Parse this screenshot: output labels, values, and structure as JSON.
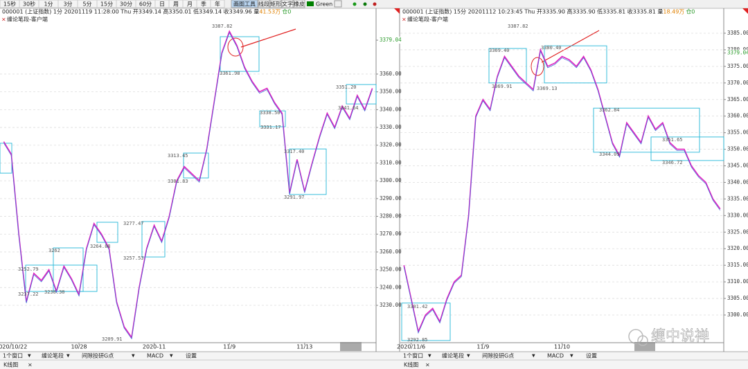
{
  "toolbar": {
    "periods": [
      "15秒",
      "30秒",
      "1分",
      "3分",
      "5分",
      "15分",
      "30分",
      "60分",
      "日",
      "周",
      "月",
      "季",
      "年"
    ],
    "tools": [
      "画图工具",
      "线段",
      "矩形",
      "文字",
      "橡皮"
    ],
    "color_name": "Green"
  },
  "watermark": "缠中说禅",
  "tab": "K线图",
  "panels": [
    {
      "header": "000001 (上证指数) 1分 20201119 11:28:00 Thu  开3349.14 高3350.01 低3349.14 收3349.96 量",
      "volume": "41.53万",
      "tail": "仓0",
      "indicator": "缠论笔段-客户端",
      "chart_data": {
        "type": "line",
        "color": "#e020c0",
        "ylim": [
          3209,
          3388
        ],
        "yticks": [
          {
            "value": 3230,
            "label": "3230.00"
          },
          {
            "value": 3240,
            "label": "3240.00"
          },
          {
            "value": 3250,
            "label": "3250.00"
          },
          {
            "value": 3260,
            "label": "3260.00"
          },
          {
            "value": 3270,
            "label": "3270.00"
          },
          {
            "value": 3280,
            "label": "3280.00"
          },
          {
            "value": 3290,
            "label": "3290.00"
          },
          {
            "value": 3300,
            "label": "3300.00"
          },
          {
            "value": 3310,
            "label": "3310.00"
          },
          {
            "value": 3320,
            "label": "3320.00"
          },
          {
            "value": 3330,
            "label": "3330.00"
          },
          {
            "value": 3340,
            "label": "3340.00"
          },
          {
            "value": 3350,
            "label": "3350.00"
          },
          {
            "value": 3360,
            "label": "3360.00"
          },
          3379.04
        ],
        "categories": [
          null,
          "2020/10/22",
          null,
          null,
          null,
          null,
          null,
          null,
          null,
          null,
          "10/28",
          null,
          null,
          null,
          null,
          null,
          null,
          null,
          null,
          null,
          "2020-11",
          null,
          null,
          null,
          null,
          null,
          null,
          null,
          null,
          null,
          "11/9",
          null,
          null,
          null,
          null,
          null,
          null,
          null,
          null,
          null,
          "11/13",
          null,
          null,
          null,
          null,
          null,
          null,
          null,
          null,
          null
        ],
        "values": [
          3322,
          3315,
          3270,
          3232,
          3248,
          3244,
          3250,
          3238,
          3252,
          3245,
          3236,
          3262,
          3276,
          3270,
          3262,
          3232,
          3218,
          3212,
          3240,
          3262,
          3275,
          3266,
          3280,
          3300,
          3308,
          3304,
          3300,
          3318,
          3345,
          3372,
          3384,
          3376,
          3364,
          3356,
          3350,
          3352,
          3344,
          3338,
          3293,
          3312,
          3294,
          3310,
          3325,
          3338,
          3330,
          3342,
          3335,
          3348,
          3340,
          3352
        ],
        "zones": [
          {
            "high": 3321.1,
            "low": 3304.3
          },
          {
            "high": 3252.6,
            "low": 3237.8
          },
          {
            "high": 3262.3,
            "low": 3237.8
          },
          {
            "high": 3276.7,
            "low": 3265.4
          },
          {
            "high": 3277.1,
            "low": 3257.2
          },
          {
            "high": 3315.6,
            "low": 3301.6
          },
          {
            "high": 3381,
            "low": 3361.5
          },
          {
            "high": 3339.3,
            "low": 3330.4
          },
          {
            "high": 3317.9,
            "low": 3292.3
          },
          {
            "high": 3354.1,
            "low": 3343.2
          }
        ],
        "annotations": [
          "3387.82",
          "3361.98",
          "3338.50",
          "3331.17",
          "3317.40",
          "3291.97",
          "3351.20",
          "3341.64",
          "3313.45",
          "3301.83",
          "3277.47",
          "3257.53",
          "3264.88",
          "3262",
          "3252.79",
          "3237.22",
          "3238.38",
          "3209.91"
        ]
      },
      "controls": [
        "1个窗口",
        "缠论笔段",
        "间隙投研G点",
        "MACD",
        "设置"
      ]
    },
    {
      "header": "000001 (上证指数) 15分 20201112 10:23:45 Thu  开3335.90 高3335.90 低3335.81 收3335.81 量",
      "volume": "18.49万",
      "tail": "仓0",
      "indicator": "缠论笔段-客户端",
      "chart_data": {
        "type": "line",
        "color": "#e020c0",
        "ylim": [
          3291.65,
          3387.71
        ],
        "yticks": [
          {
            "value": 3300,
            "label": "3300.00"
          },
          {
            "value": 3305,
            "label": "3305.00"
          },
          {
            "value": 3310,
            "label": "3310.00"
          },
          {
            "value": 3315,
            "label": "3315.00"
          },
          {
            "value": 3320,
            "label": "3320.00"
          },
          {
            "value": 3325,
            "label": "3325.00"
          },
          {
            "value": 3330,
            "label": "3330.00"
          },
          {
            "value": 3335,
            "label": "3335.00"
          },
          {
            "value": 3340,
            "label": "3340.00"
          },
          {
            "value": 3345,
            "label": "3345.00"
          },
          {
            "value": 3350,
            "label": "3350.00"
          },
          {
            "value": 3355,
            "label": "3355.00"
          },
          {
            "value": 3360,
            "label": "3360.00"
          },
          {
            "value": 3365,
            "label": "3365.00"
          },
          {
            "value": 3370,
            "label": "3370.00"
          },
          {
            "value": 3375,
            "label": "3375.00"
          },
          {
            "value": 3380,
            "label": "3380.00"
          },
          {
            "value": 3385,
            "label": "3385.00"
          },
          3379.04
        ],
        "categories": [
          null,
          "2020/11/6",
          null,
          null,
          null,
          null,
          null,
          null,
          null,
          null,
          null,
          "11/9",
          null,
          null,
          null,
          null,
          null,
          null,
          null,
          null,
          null,
          null,
          "11/10",
          null,
          null,
          null,
          null,
          null,
          null,
          null,
          null,
          null,
          null,
          null,
          null,
          null,
          null,
          null,
          null,
          null,
          null,
          null,
          null,
          null,
          null
        ],
        "values": [
          3315,
          3305,
          3295,
          3300,
          3302,
          3298,
          3305,
          3310,
          3312,
          3330,
          3360,
          3365,
          3362,
          3372,
          3378,
          3375,
          3372,
          3370,
          3368,
          3380,
          3375,
          3376,
          3378,
          3377,
          3375,
          3378,
          3374,
          3368,
          3360,
          3352,
          3348,
          3358,
          3355,
          3352,
          3360,
          3356,
          3358,
          3352,
          3350,
          3350,
          3345,
          3342,
          3340,
          3335,
          3332
        ],
        "zones": [
          {
            "high": 3303.6,
            "low": 3292.3
          },
          {
            "high": 3380.4,
            "low": 3370
          },
          {
            "high": 3381.2,
            "low": 3370
          },
          {
            "high": 3362.4,
            "low": 3349.1
          },
          {
            "high": 3353.7,
            "low": 3346.6
          }
        ],
        "annotations": [
          "3387.82",
          "3369.40",
          "3369.91",
          "3369.13",
          "3380.40",
          "3362.84",
          "3344.09",
          "3351.65",
          "3346.72",
          "3301.42",
          "3292.85"
        ]
      },
      "controls": [
        "1个窗口",
        "缠论笔段",
        "间隙投研G点",
        "MACD",
        "设置"
      ]
    }
  ]
}
